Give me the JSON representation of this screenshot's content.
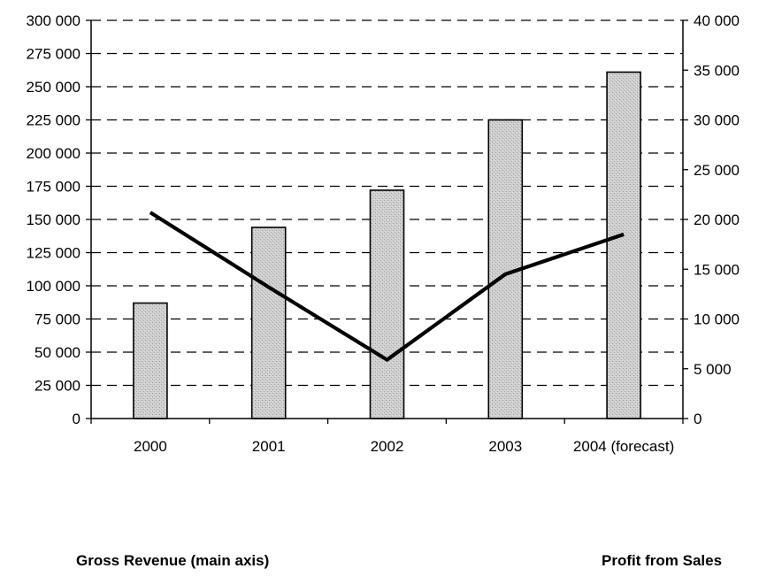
{
  "chart_data": {
    "type": "bar",
    "categories": [
      "2000",
      "2001",
      "2002",
      "2003",
      "2004 (forecast)"
    ],
    "series": [
      {
        "name": "Gross Revenue (main axis)",
        "type": "bar",
        "axis": "left",
        "values": [
          87000,
          144000,
          172000,
          225000,
          261000
        ]
      },
      {
        "name": "Profit from Sales",
        "type": "line",
        "axis": "right",
        "values": [
          20700,
          13200,
          5900,
          14500,
          18500
        ]
      }
    ],
    "y_left": {
      "ylim": [
        0,
        300000
      ],
      "ticks": [
        "0",
        "25 000",
        "50 000",
        "75 000",
        "100 000",
        "125 000",
        "150 000",
        "175 000",
        "200 000",
        "225 000",
        "250 000",
        "275 000",
        "300 000"
      ]
    },
    "y_right": {
      "ylim": [
        0,
        40000
      ],
      "ticks": [
        "0",
        "5 000",
        "10 000",
        "15 000",
        "20 000",
        "25 000",
        "30 000",
        "35 000",
        "40 000"
      ]
    },
    "grid": true,
    "grid_style": "dashed",
    "legend_position": "bottom",
    "colors": {
      "bar_fill": "#c8c8c8",
      "bar_stroke": "#000000",
      "line": "#000000",
      "grid": "#000000"
    }
  }
}
